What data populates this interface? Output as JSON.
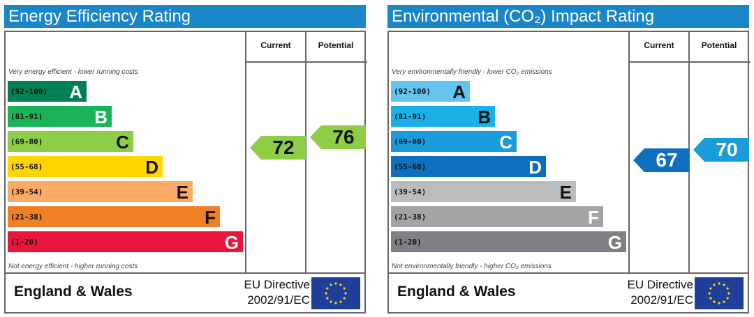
{
  "energy_panel": {
    "title": "Energy Efficiency Rating",
    "current_label": "Current",
    "potential_label": "Potential",
    "top_note": "Very energy efficient - lower running costs",
    "bottom_note": "Not energy efficient - higher running costs",
    "bands": [
      {
        "range": "(92-100)",
        "letter": "A",
        "color": "#008054"
      },
      {
        "range": "(81-91)",
        "letter": "B",
        "color": "#19b459"
      },
      {
        "range": "(69-80)",
        "letter": "C",
        "color": "#8dce46"
      },
      {
        "range": "(55-68)",
        "letter": "D",
        "color": "#ffd500"
      },
      {
        "range": "(39-54)",
        "letter": "E",
        "color": "#fcaa65"
      },
      {
        "range": "(21-38)",
        "letter": "F",
        "color": "#ef8023"
      },
      {
        "range": "(1-20)",
        "letter": "G",
        "color": "#e9153b"
      }
    ],
    "current_value": "72",
    "current_color": "#8dce46",
    "potential_value": "76",
    "potential_color": "#8dce46",
    "footer_country": "England & Wales",
    "footer_directive_line1": "EU Directive",
    "footer_directive_line2": "2002/91/EC"
  },
  "env_panel": {
    "title": "Environmental (CO₂) Impact Rating",
    "current_label": "Current",
    "potential_label": "Potential",
    "top_note": "Very environmentally friendly - lower CO₂ emissions",
    "bottom_note": "Not environmentally friendly - higher CO₂ emissions",
    "bands": [
      {
        "range": "(92-100)",
        "letter": "A",
        "color": "#63c5ef"
      },
      {
        "range": "(81-91)",
        "letter": "B",
        "color": "#1ab1e9"
      },
      {
        "range": "(69-80)",
        "letter": "C",
        "color": "#1a9bdb"
      },
      {
        "range": "(55-68)",
        "letter": "D",
        "color": "#0f6fbf"
      },
      {
        "range": "(39-54)",
        "letter": "E",
        "color": "#bbbcbe"
      },
      {
        "range": "(21-38)",
        "letter": "F",
        "color": "#a3a4a6"
      },
      {
        "range": "(1-20)",
        "letter": "G",
        "color": "#7f8083"
      }
    ],
    "current_value": "67",
    "current_color": "#0f6fbf",
    "potential_value": "70",
    "potential_color": "#1a9bdb",
    "footer_country": "England & Wales",
    "footer_directive_line1": "EU Directive",
    "footer_directive_line2": "2002/91/EC"
  },
  "eu_flag_icon": "eu-flag-icon"
}
